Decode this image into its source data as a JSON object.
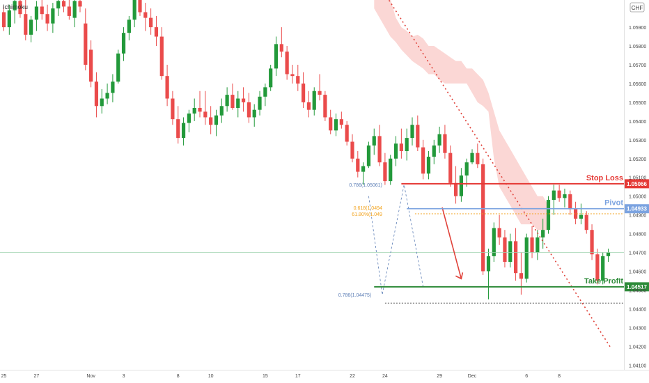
{
  "indicator_label": "Ichimoku",
  "currency_label": "CHF",
  "chart_data": {
    "type": "candlestick",
    "title": "",
    "ylim": [
      1.04075,
      1.06045
    ],
    "y_ticks": [
      "1.05900",
      "1.05800",
      "1.05700",
      "1.05600",
      "1.05500",
      "1.05400",
      "1.05300",
      "1.05200",
      "1.05100",
      "1.05000",
      "1.04900",
      "1.04800",
      "1.04700",
      "1.04600",
      "1.04500",
      "1.04400",
      "1.04300",
      "1.04200",
      "1.04100"
    ],
    "x_ticks": [
      {
        "label": "25",
        "i": 0
      },
      {
        "label": "27",
        "i": 6
      },
      {
        "label": "Nov",
        "i": 16
      },
      {
        "label": "3",
        "i": 22
      },
      {
        "label": "8",
        "i": 32
      },
      {
        "label": "10",
        "i": 38
      },
      {
        "label": "15",
        "i": 48
      },
      {
        "label": "17",
        "i": 54
      },
      {
        "label": "22",
        "i": 64
      },
      {
        "label": "24",
        "i": 70
      },
      {
        "label": "29",
        "i": 80
      },
      {
        "label": "Dec",
        "i": 86
      },
      {
        "label": "6",
        "i": 96
      },
      {
        "label": "8",
        "i": 102
      }
    ],
    "candles": [
      [
        1.0598,
        1.0601,
        1.0588,
        1.059
      ],
      [
        1.059,
        1.0602,
        1.0586,
        1.0599
      ],
      [
        1.0599,
        1.0606,
        1.0592,
        1.0604
      ],
      [
        1.0604,
        1.0608,
        1.0595,
        1.0597
      ],
      [
        1.0597,
        1.0606,
        1.0583,
        1.0586
      ],
      [
        1.0586,
        1.0596,
        1.0582,
        1.0594
      ],
      [
        1.0594,
        1.0604,
        1.0588,
        1.0601
      ],
      [
        1.0601,
        1.0606,
        1.0594,
        1.0597
      ],
      [
        1.0597,
        1.0602,
        1.0588,
        1.0592
      ],
      [
        1.0592,
        1.0603,
        1.0587,
        1.06
      ],
      [
        1.06,
        1.0608,
        1.0596,
        1.0604
      ],
      [
        1.0604,
        1.0608,
        1.0598,
        1.0601
      ],
      [
        1.0601,
        1.0606,
        1.0594,
        1.0596
      ],
      [
        1.0595,
        1.0608,
        1.059,
        1.0604
      ],
      [
        1.0604,
        1.061,
        1.0598,
        1.0601
      ],
      [
        1.0592,
        1.06,
        1.0567,
        1.057
      ],
      [
        1.0578,
        1.0583,
        1.0558,
        1.0561
      ],
      [
        1.0561,
        1.0566,
        1.0542,
        1.0548
      ],
      [
        1.0548,
        1.0557,
        1.0544,
        1.0552
      ],
      [
        1.0552,
        1.056,
        1.0549,
        1.0555
      ],
      [
        1.0555,
        1.0565,
        1.055,
        1.0561
      ],
      [
        1.0561,
        1.0578,
        1.056,
        1.0576
      ],
      [
        1.0576,
        1.059,
        1.0572,
        1.0587
      ],
      [
        1.0587,
        1.0596,
        1.0583,
        1.0594
      ],
      [
        1.0594,
        1.0608,
        1.059,
        1.0606
      ],
      [
        1.0606,
        1.0608,
        1.0596,
        1.0598
      ],
      [
        1.0598,
        1.0603,
        1.0588,
        1.0595
      ],
      [
        1.0595,
        1.06,
        1.0586,
        1.059
      ],
      [
        1.059,
        1.0596,
        1.058,
        1.0585
      ],
      [
        1.0585,
        1.059,
        1.0562,
        1.0564
      ],
      [
        1.0564,
        1.057,
        1.0548,
        1.0552
      ],
      [
        1.0552,
        1.0556,
        1.0538,
        1.0541
      ],
      [
        1.0541,
        1.0548,
        1.0528,
        1.0531
      ],
      [
        1.0531,
        1.0542,
        1.0527,
        1.0539
      ],
      [
        1.0539,
        1.0546,
        1.0534,
        1.0544
      ],
      [
        1.0544,
        1.0552,
        1.054,
        1.0547
      ],
      [
        1.0547,
        1.0556,
        1.0542,
        1.0545
      ],
      [
        1.0545,
        1.0556,
        1.0538,
        1.0542
      ],
      [
        1.0542,
        1.0548,
        1.0533,
        1.0538
      ],
      [
        1.0538,
        1.0546,
        1.0532,
        1.0543
      ],
      [
        1.0543,
        1.0552,
        1.0539,
        1.0548
      ],
      [
        1.0548,
        1.0558,
        1.0545,
        1.0554
      ],
      [
        1.0554,
        1.056,
        1.0546,
        1.0547
      ],
      [
        1.0547,
        1.0556,
        1.0542,
        1.0552
      ],
      [
        1.0552,
        1.0558,
        1.0545,
        1.055
      ],
      [
        1.055,
        1.0555,
        1.0539,
        1.0542
      ],
      [
        1.0542,
        1.0549,
        1.0537,
        1.0546
      ],
      [
        1.0546,
        1.0556,
        1.0543,
        1.0553
      ],
      [
        1.0553,
        1.056,
        1.0548,
        1.0558
      ],
      [
        1.0558,
        1.057,
        1.0556,
        1.0568
      ],
      [
        1.0568,
        1.0585,
        1.0564,
        1.0581
      ],
      [
        1.0581,
        1.059,
        1.0574,
        1.0577
      ],
      [
        1.0577,
        1.058,
        1.0562,
        1.0565
      ],
      [
        1.0565,
        1.057,
        1.056,
        1.0564
      ],
      [
        1.0564,
        1.057,
        1.0556,
        1.056
      ],
      [
        1.056,
        1.0566,
        1.0547,
        1.055
      ],
      [
        1.055,
        1.0556,
        1.0542,
        1.0546
      ],
      [
        1.0546,
        1.0558,
        1.0543,
        1.0556
      ],
      [
        1.0556,
        1.0565,
        1.0551,
        1.0554
      ],
      [
        1.0554,
        1.0556,
        1.054,
        1.0542
      ],
      [
        1.0542,
        1.0546,
        1.0533,
        1.0535
      ],
      [
        1.0535,
        1.0544,
        1.0532,
        1.0541
      ],
      [
        1.0541,
        1.0545,
        1.0536,
        1.0538
      ],
      [
        1.0538,
        1.054,
        1.0527,
        1.0529
      ],
      [
        1.0529,
        1.0533,
        1.0518,
        1.052
      ],
      [
        1.052,
        1.0524,
        1.051,
        1.0513
      ],
      [
        1.0513,
        1.0518,
        1.0506,
        1.0516
      ],
      [
        1.0516,
        1.0529,
        1.0515,
        1.0527
      ],
      [
        1.0527,
        1.0536,
        1.0522,
        1.0532
      ],
      [
        1.0532,
        1.0538,
        1.0516,
        1.0518
      ],
      [
        1.0518,
        1.0523,
        1.0506,
        1.0508
      ],
      [
        1.0508,
        1.0522,
        1.0506,
        1.052
      ],
      [
        1.052,
        1.0532,
        1.0516,
        1.0528
      ],
      [
        1.0528,
        1.0536,
        1.052,
        1.0524
      ],
      [
        1.0524,
        1.0536,
        1.0519,
        1.0531
      ],
      [
        1.0531,
        1.0542,
        1.0527,
        1.0538
      ],
      [
        1.0538,
        1.0543,
        1.0524,
        1.0526
      ],
      [
        1.0526,
        1.053,
        1.0509,
        1.0512
      ],
      [
        1.0512,
        1.0524,
        1.0509,
        1.0521
      ],
      [
        1.0521,
        1.053,
        1.0517,
        1.0527
      ],
      [
        1.0527,
        1.0537,
        1.0523,
        1.0533
      ],
      [
        1.0533,
        1.0538,
        1.052,
        1.0523
      ],
      [
        1.0523,
        1.0527,
        1.0505,
        1.0507
      ],
      [
        1.0507,
        1.0516,
        1.0496,
        1.05
      ],
      [
        1.05,
        1.0515,
        1.0497,
        1.0511
      ],
      [
        1.0511,
        1.052,
        1.0505,
        1.0518
      ],
      [
        1.0518,
        1.0525,
        1.0517,
        1.0523
      ],
      [
        1.0523,
        1.0528,
        1.0515,
        1.0517
      ],
      [
        1.0517,
        1.052,
        1.0458,
        1.046
      ],
      [
        1.046,
        1.0472,
        1.0445,
        1.0468
      ],
      [
        1.0468,
        1.0486,
        1.0465,
        1.0483
      ],
      [
        1.0483,
        1.049,
        1.0474,
        1.0478
      ],
      [
        1.0478,
        1.0482,
        1.0462,
        1.0465
      ],
      [
        1.0465,
        1.048,
        1.0462,
        1.0476
      ],
      [
        1.0476,
        1.0483,
        1.0455,
        1.0459
      ],
      [
        1.0459,
        1.047,
        1.04475,
        1.0456
      ],
      [
        1.0456,
        1.048,
        1.0454,
        1.0478
      ],
      [
        1.0478,
        1.0484,
        1.0467,
        1.047
      ],
      [
        1.047,
        1.0482,
        1.0466,
        1.0478
      ],
      [
        1.0478,
        1.0488,
        1.0472,
        1.0482
      ],
      [
        1.0482,
        1.05,
        1.048,
        1.0498
      ],
      [
        1.0498,
        1.05061,
        1.049,
        1.0503
      ],
      [
        1.0503,
        1.0506,
        1.0497,
        1.0499
      ],
      [
        1.0499,
        1.0504,
        1.0494,
        1.0501
      ],
      [
        1.0501,
        1.0503,
        1.049,
        1.0493
      ],
      [
        1.0493,
        1.0497,
        1.0485,
        1.0488
      ],
      [
        1.0488,
        1.0496,
        1.0485,
        1.049
      ],
      [
        1.049,
        1.0492,
        1.048,
        1.0482
      ],
      [
        1.0482,
        1.0485,
        1.0466,
        1.0469
      ],
      [
        1.0469,
        1.0472,
        1.0453,
        1.0455
      ],
      [
        1.0455,
        1.047,
        1.0453,
        1.0468
      ],
      [
        1.0468,
        1.0472,
        1.0465,
        1.047
      ]
    ],
    "cloud": [
      [
        1.061,
        1.06
      ],
      [
        1.061,
        1.0595
      ],
      [
        1.061,
        1.059
      ],
      [
        1.0605,
        1.0585
      ],
      [
        1.0595,
        1.0582
      ],
      [
        1.059,
        1.0578
      ],
      [
        1.0588,
        1.0575
      ],
      [
        1.0585,
        1.0572
      ],
      [
        1.0586,
        1.057
      ],
      [
        1.0584,
        1.0568
      ],
      [
        1.058,
        1.0565
      ],
      [
        1.058,
        1.0565
      ],
      [
        1.0578,
        1.0562
      ],
      [
        1.0576,
        1.056
      ],
      [
        1.0574,
        1.056
      ],
      [
        1.0572,
        1.056
      ],
      [
        1.0572,
        1.056
      ],
      [
        1.0568,
        1.056
      ],
      [
        1.0568,
        1.0555
      ],
      [
        1.0565,
        1.055
      ],
      [
        1.0562,
        1.0548
      ],
      [
        1.0555,
        1.0545
      ],
      [
        1.0545,
        1.052
      ],
      [
        1.0535,
        1.0505
      ],
      [
        1.053,
        1.05
      ],
      [
        1.0525,
        1.0495
      ],
      [
        1.052,
        1.049
      ],
      [
        1.0515,
        1.0485
      ],
      [
        1.051,
        1.0485
      ],
      [
        1.0505,
        1.0485
      ],
      [
        1.05,
        1.0482
      ],
      [
        1.05,
        1.0482
      ],
      [
        1.0495,
        1.0482
      ]
    ],
    "cloud_start_index": 68,
    "trendline": {
      "x1": 69.5,
      "y1": 1.061,
      "x2": 111.5,
      "y2": 1.0419
    },
    "fib_labels": [
      {
        "text": "0.786(1.05061)",
        "value": 1.05061,
        "i": 70
      },
      {
        "text": "0.618(1.0494",
        "value": 1.0494,
        "i": 70
      },
      {
        "text": "61.80%(1.049",
        "value": 1.04906,
        "i": 70
      },
      {
        "text": "0.786(1.04475)",
        "value": 1.04475,
        "i": 68
      }
    ],
    "levels": {
      "stop_loss": {
        "label": "Stop Loss",
        "value": "1.05066",
        "color": "#e53935"
      },
      "pivot": {
        "label": "Pivot",
        "value": "1.04933",
        "color": "#7ba3e0"
      },
      "take_profit": {
        "label": "Take Profit",
        "value": "1.04517",
        "color": "#2e8b3a"
      }
    },
    "current_price_level": 1.047,
    "colors": {
      "up": "#22993a",
      "down": "#ea4b4b",
      "cloud": "#fbd3d0",
      "trend": "#e0423a",
      "fib": "#5b7db5",
      "fib_gold": "#f2a21b"
    }
  }
}
